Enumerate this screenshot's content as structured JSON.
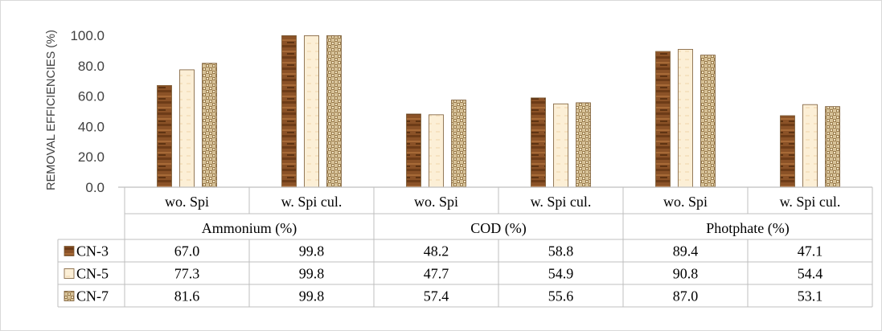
{
  "chart_data": {
    "type": "bar",
    "title": "",
    "ylabel": "REMOVAL EFFICIENCIES (%)",
    "ylim": [
      0,
      100
    ],
    "yticks": [
      "0.0",
      "20.0",
      "40.0",
      "60.0",
      "80.0",
      "100.0"
    ],
    "groups": [
      "Ammonium (%)",
      "COD (%)",
      "Photphate (%)"
    ],
    "categories": [
      "wo. Spi",
      "w. Spi cul.",
      "wo. Spi",
      "w. Spi cul.",
      "wo. Spi",
      "w. Spi cul."
    ],
    "series": [
      {
        "name": "CN-3",
        "color": "#8b5227",
        "pattern": "dark-brown-wood",
        "values": [
          67.0,
          99.8,
          48.2,
          58.8,
          89.4,
          47.1
        ],
        "labels": [
          "67.0",
          "99.8",
          "48.2",
          "58.8",
          "89.4",
          "47.1"
        ]
      },
      {
        "name": "CN-5",
        "color": "#fcefd6",
        "pattern": "light-cream",
        "values": [
          77.3,
          99.8,
          47.7,
          54.9,
          90.8,
          54.4
        ],
        "labels": [
          "77.3",
          "99.8",
          "47.7",
          "54.9",
          "90.8",
          "54.4"
        ]
      },
      {
        "name": "CN-7",
        "color": "#c1a777",
        "pattern": "tan-woven",
        "values": [
          81.6,
          99.8,
          57.4,
          55.6,
          87.0,
          53.1
        ],
        "labels": [
          "81.6",
          "99.8",
          "57.4",
          "55.6",
          "87.0",
          "53.1"
        ]
      }
    ],
    "grid": false,
    "legend": "data-table"
  }
}
